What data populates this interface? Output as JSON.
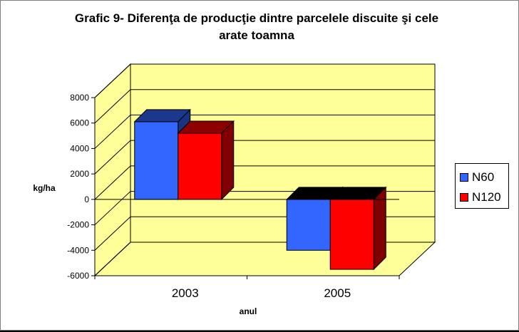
{
  "chart_data": {
    "type": "bar",
    "title_lines": [
      "Grafic 9- Diferenţa de producţie dintre parcelele discuite şi cele",
      "arate toamna"
    ],
    "xlabel": "anul",
    "ylabel": "kg/ha",
    "categories": [
      "2003",
      "2005"
    ],
    "series": [
      {
        "name": "N60",
        "values": [
          6100,
          -4000
        ],
        "color": "#3366ff"
      },
      {
        "name": "N120",
        "values": [
          5200,
          -5500
        ],
        "color": "#ff0000"
      }
    ],
    "ylim": [
      -6000,
      8000
    ],
    "yticks": [
      "8000",
      "6000",
      "4000",
      "2000",
      "0",
      "-2000",
      "-4000",
      "-6000"
    ],
    "grid": true,
    "legend_position": "right",
    "wall_color": "#ffff99",
    "floor_color": "#ffff99"
  }
}
